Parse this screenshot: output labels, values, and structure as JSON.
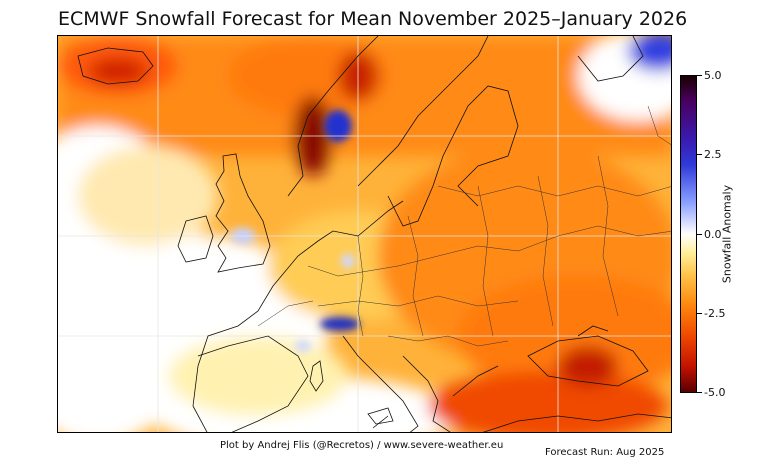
{
  "title": "ECMWF Snowfall Forecast for Mean November 2025–January 2026",
  "colorbar": {
    "label": "Snowfall Anomaly",
    "ticks": [
      "5.0",
      "2.5",
      "0.0",
      "-2.5",
      "-5.0"
    ],
    "range": [
      -5.0,
      5.0
    ]
  },
  "credit": "Plot by Andrej Flis (@Recretos) / www.severe-weather.eu",
  "forecast_run": "Forecast Run: Aug 2025",
  "colors": {
    "strong_deficit": "#5a0000",
    "deficit": "#f04a00",
    "mild_deficit": "#ffc34a",
    "neutral": "#ffffff",
    "surplus": "#2f3ad8"
  }
}
